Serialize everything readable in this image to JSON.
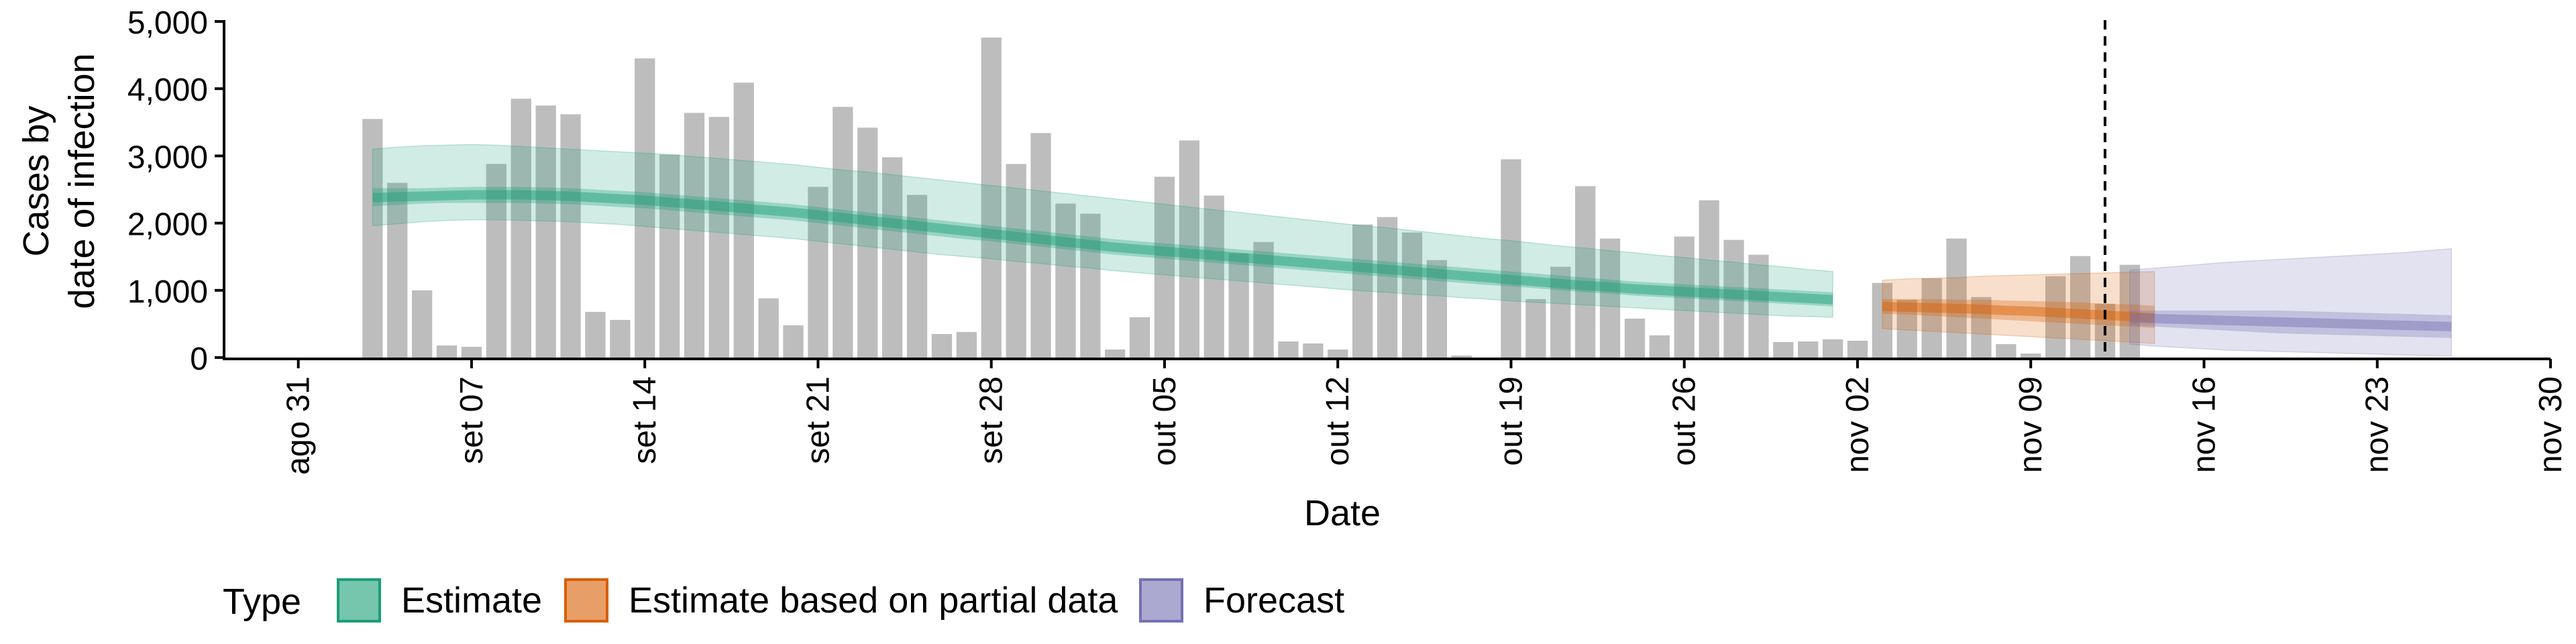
{
  "chart_data": {
    "type": "bar",
    "xlabel": "Date",
    "ylabel_lines": [
      "Cases by",
      "date of infection"
    ],
    "x_range": [
      "2020-08-28",
      "2020-11-30"
    ],
    "ylim": [
      0,
      5000
    ],
    "y_ticks": [
      0,
      1000,
      2000,
      3000,
      4000,
      5000
    ],
    "y_tick_labels": [
      "0",
      "1,000",
      "2,000",
      "3,000",
      "4,000",
      "5,000"
    ],
    "x_ticks": [
      "2020-08-31",
      "2020-09-07",
      "2020-09-14",
      "2020-09-21",
      "2020-09-28",
      "2020-10-05",
      "2020-10-12",
      "2020-10-19",
      "2020-10-26",
      "2020-11-02",
      "2020-11-09",
      "2020-11-16",
      "2020-11-23",
      "2020-11-30"
    ],
    "x_tick_labels": [
      "ago 31",
      "set 07",
      "set 14",
      "set 21",
      "set 28",
      "out 05",
      "out 12",
      "out 19",
      "out 26",
      "nov 02",
      "nov 09",
      "nov 16",
      "nov 23",
      "nov 30"
    ],
    "forecast_line_date": "2020-11-12",
    "grid": false,
    "legend": {
      "title": "Type",
      "position": "bottom",
      "items": [
        {
          "label": "Estimate",
          "color": "#1b9e77"
        },
        {
          "label": "Estimate based on partial data",
          "color": "#d95f02"
        },
        {
          "label": "Forecast",
          "color": "#7570b3"
        }
      ]
    },
    "bar_color": "#bdbdbd",
    "bars": {
      "start_date": "2020-09-03",
      "values": [
        3550,
        2600,
        1000,
        180,
        160,
        2880,
        3850,
        3750,
        3620,
        680,
        560,
        4450,
        3020,
        3640,
        3580,
        4090,
        880,
        480,
        2540,
        3730,
        3420,
        2980,
        2420,
        350,
        380,
        4760,
        2880,
        3340,
        2290,
        2140,
        120,
        600,
        2690,
        3230,
        2410,
        1550,
        1720,
        240,
        210,
        120,
        1980,
        2090,
        1860,
        1450,
        30,
        0,
        2950,
        870,
        1350,
        2550,
        1770,
        580,
        330,
        1800,
        2340,
        1750,
        1530,
        230,
        240,
        270,
        250,
        1110,
        860,
        1180,
        1770,
        900,
        200,
        60,
        1210,
        1510,
        800,
        1380
      ]
    },
    "series": [
      {
        "name": "Estimate",
        "color": "#1b9e77",
        "start_date": "2020-09-03",
        "median": [
          2380,
          2390,
          2400,
          2410,
          2420,
          2420,
          2420,
          2410,
          2400,
          2380,
          2360,
          2340,
          2310,
          2280,
          2250,
          2220,
          2190,
          2160,
          2120,
          2080,
          2040,
          2000,
          1960,
          1920,
          1880,
          1840,
          1800,
          1760,
          1720,
          1680,
          1640,
          1610,
          1580,
          1550,
          1520,
          1490,
          1460,
          1430,
          1400,
          1370,
          1340,
          1310,
          1280,
          1250,
          1220,
          1190,
          1160,
          1130,
          1100,
          1070,
          1050,
          1020,
          1000,
          980,
          960,
          940,
          920,
          900,
          880,
          860
        ],
        "inner_lower": [
          2250,
          2270,
          2290,
          2300,
          2300,
          2300,
          2300,
          2290,
          2280,
          2260,
          2240,
          2220,
          2190,
          2160,
          2130,
          2100,
          2070,
          2040,
          2000,
          1960,
          1920,
          1880,
          1840,
          1800,
          1760,
          1730,
          1690,
          1650,
          1610,
          1570,
          1530,
          1500,
          1470,
          1440,
          1410,
          1380,
          1350,
          1320,
          1290,
          1260,
          1230,
          1200,
          1170,
          1140,
          1110,
          1080,
          1060,
          1030,
          1000,
          970,
          950,
          920,
          900,
          880,
          860,
          840,
          820,
          800,
          780,
          760
        ],
        "inner_upper": [
          2520,
          2520,
          2520,
          2530,
          2540,
          2540,
          2540,
          2530,
          2520,
          2500,
          2480,
          2460,
          2430,
          2400,
          2370,
          2340,
          2310,
          2280,
          2240,
          2200,
          2160,
          2120,
          2080,
          2040,
          2000,
          1960,
          1920,
          1880,
          1840,
          1800,
          1760,
          1730,
          1700,
          1670,
          1640,
          1610,
          1580,
          1550,
          1520,
          1490,
          1460,
          1430,
          1400,
          1370,
          1340,
          1310,
          1280,
          1250,
          1220,
          1190,
          1160,
          1130,
          1110,
          1090,
          1070,
          1050,
          1030,
          1010,
          990,
          970
        ],
        "outer_lower": [
          1960,
          1990,
          2020,
          2040,
          2050,
          2050,
          2040,
          2030,
          2020,
          2000,
          1980,
          1950,
          1920,
          1890,
          1860,
          1830,
          1800,
          1770,
          1730,
          1690,
          1650,
          1610,
          1570,
          1530,
          1500,
          1470,
          1430,
          1400,
          1360,
          1330,
          1290,
          1260,
          1230,
          1200,
          1170,
          1140,
          1110,
          1080,
          1050,
          1020,
          990,
          970,
          940,
          920,
          890,
          870,
          840,
          820,
          800,
          780,
          760,
          740,
          720,
          700,
          680,
          660,
          640,
          620,
          610,
          600
        ],
        "outer_upper": [
          3100,
          3130,
          3150,
          3160,
          3170,
          3160,
          3140,
          3120,
          3100,
          3080,
          3060,
          3040,
          3020,
          2990,
          2960,
          2930,
          2900,
          2870,
          2830,
          2790,
          2760,
          2720,
          2680,
          2640,
          2600,
          2560,
          2520,
          2480,
          2440,
          2400,
          2360,
          2320,
          2280,
          2240,
          2200,
          2160,
          2120,
          2080,
          2040,
          2000,
          1960,
          1930,
          1890,
          1850,
          1810,
          1770,
          1740,
          1700,
          1660,
          1630,
          1590,
          1560,
          1520,
          1490,
          1450,
          1420,
          1380,
          1350,
          1310,
          1280
        ]
      },
      {
        "name": "Estimate based on partial data",
        "color": "#d95f02",
        "start_date": "2020-11-03",
        "median": [
          760,
          750,
          740,
          730,
          720,
          700,
          690,
          670,
          650,
          630,
          610,
          590
        ],
        "inner_lower": [
          650,
          640,
          620,
          600,
          580,
          560,
          540,
          520,
          500,
          480,
          460,
          440
        ],
        "inner_upper": [
          870,
          870,
          870,
          860,
          860,
          850,
          840,
          830,
          820,
          800,
          790,
          770
        ],
        "outer_lower": [
          430,
          410,
          390,
          370,
          350,
          330,
          310,
          290,
          270,
          250,
          230,
          210
        ],
        "outer_upper": [
          1150,
          1170,
          1180,
          1190,
          1210,
          1220,
          1230,
          1240,
          1250,
          1260,
          1270,
          1280
        ]
      },
      {
        "name": "Forecast",
        "color": "#7570b3",
        "start_date": "2020-11-13",
        "median": [
          590,
          580,
          570,
          560,
          550,
          540,
          530,
          520,
          510,
          500,
          490,
          480,
          470,
          460
        ],
        "inner_lower": [
          480,
          460,
          440,
          420,
          400,
          380,
          360,
          350,
          340,
          330,
          320,
          310,
          300,
          290
        ],
        "inner_upper": [
          700,
          700,
          700,
          700,
          700,
          700,
          700,
          690,
          680,
          670,
          660,
          650,
          640,
          630
        ],
        "outer_lower": [
          200,
          170,
          150,
          130,
          110,
          100,
          90,
          80,
          70,
          60,
          50,
          40,
          30,
          20
        ],
        "outer_upper": [
          1300,
          1330,
          1360,
          1390,
          1420,
          1440,
          1460,
          1480,
          1500,
          1520,
          1540,
          1560,
          1590,
          1620
        ]
      }
    ]
  }
}
